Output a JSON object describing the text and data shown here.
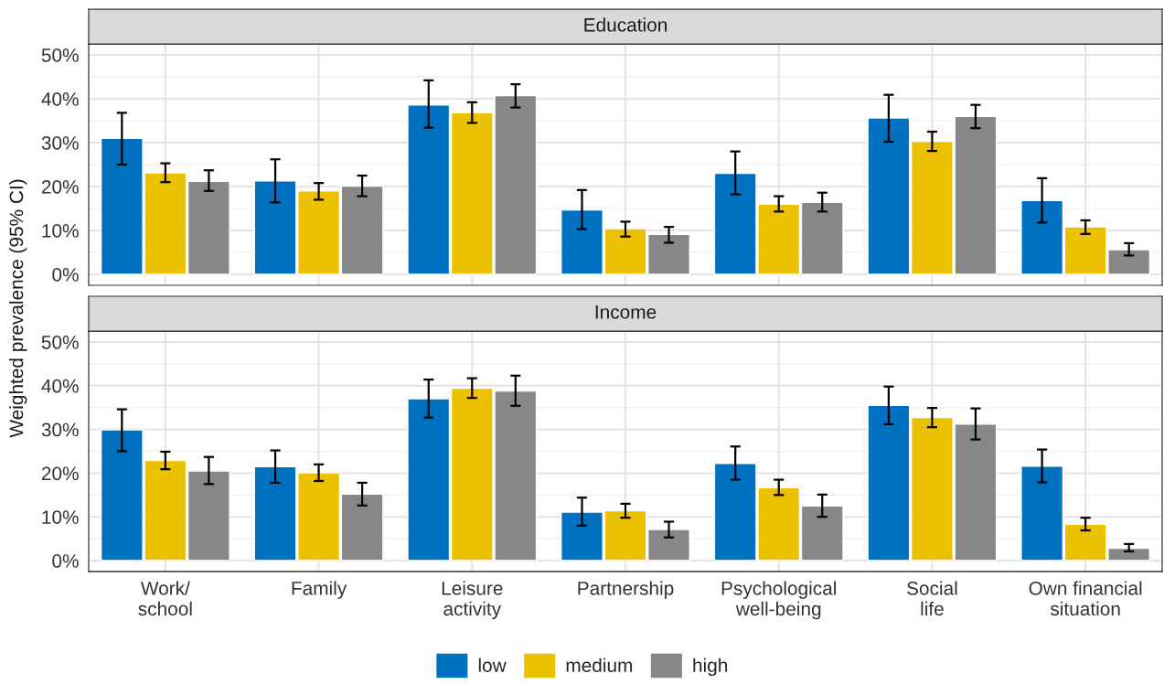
{
  "chart_data": [
    {
      "type": "bar",
      "title": "Education",
      "ylabel": "Weighted prevalence (95% CI)",
      "categories": [
        null,
        null,
        null,
        null,
        null,
        null,
        null
      ],
      "series": [
        {
          "name": "low",
          "color": "#0070c0",
          "values": [
            31.0,
            21.3,
            38.6,
            14.7,
            23.0,
            35.6,
            16.8
          ],
          "errors": [
            [
              25.0,
              36.8
            ],
            [
              16.4,
              26.2
            ],
            [
              33.4,
              44.2
            ],
            [
              10.3,
              19.2
            ],
            [
              18.2,
              28.0
            ],
            [
              30.2,
              40.9
            ],
            [
              11.8,
              21.9
            ]
          ]
        },
        {
          "name": "medium",
          "color": "#ecc100",
          "values": [
            23.1,
            19.0,
            36.8,
            10.4,
            16.0,
            30.3,
            10.8
          ],
          "errors": [
            [
              21.0,
              25.3
            ],
            [
              17.0,
              20.8
            ],
            [
              34.5,
              39.2
            ],
            [
              8.6,
              12.0
            ],
            [
              14.3,
              17.8
            ],
            [
              28.1,
              32.5
            ],
            [
              9.2,
              12.3
            ]
          ]
        },
        {
          "name": "high",
          "color": "#878787",
          "values": [
            21.2,
            20.1,
            40.7,
            9.1,
            16.4,
            36.0,
            5.6
          ],
          "errors": [
            [
              19.0,
              23.7
            ],
            [
              17.8,
              22.5
            ],
            [
              38.0,
              43.3
            ],
            [
              7.2,
              10.8
            ],
            [
              14.3,
              18.6
            ],
            [
              33.3,
              38.6
            ],
            [
              4.3,
              7.1
            ]
          ]
        }
      ],
      "ylim": [
        -2.5,
        52.5
      ],
      "yticks": [
        {
          "value": 0,
          "label": "0%"
        },
        {
          "value": 10,
          "label": "10%"
        },
        {
          "value": 20,
          "label": "20%"
        },
        {
          "value": 30,
          "label": "30%"
        },
        {
          "value": 40,
          "label": "40%"
        },
        {
          "value": 50,
          "label": "50%"
        }
      ],
      "grid": true,
      "legend": "bottom",
      "tick_labels": "y"
    },
    {
      "type": "bar",
      "title": "Income",
      "categories": [
        "Work/\nschool",
        "Family",
        "Leisure\nactivity",
        "Partnership",
        "Psychological\nwell-being",
        "Social\nlife",
        "Own financial\nsituation"
      ],
      "series": [
        {
          "color": "#0070c0",
          "values": [
            29.9,
            21.5,
            37.0,
            11.1,
            22.2,
            35.5,
            21.6
          ],
          "errors": [
            [
              25.0,
              34.6
            ],
            [
              17.8,
              25.2
            ],
            [
              32.7,
              41.4
            ],
            [
              8.0,
              14.4
            ],
            [
              18.5,
              26.1
            ],
            [
              31.2,
              39.8
            ],
            [
              17.9,
              25.4
            ]
          ]
        },
        {
          "color": "#ecc100",
          "values": [
            22.9,
            20.1,
            39.4,
            11.4,
            16.7,
            32.7,
            8.3
          ],
          "errors": [
            [
              20.9,
              24.9
            ],
            [
              18.2,
              22.0
            ],
            [
              37.2,
              41.7
            ],
            [
              9.8,
              13.0
            ],
            [
              15.0,
              18.5
            ],
            [
              30.5,
              34.9
            ],
            [
              6.9,
              9.8
            ]
          ]
        },
        {
          "color": "#878787",
          "values": [
            20.5,
            15.2,
            38.8,
            7.1,
            12.5,
            31.2,
            2.8
          ],
          "errors": [
            [
              17.5,
              23.7
            ],
            [
              12.6,
              17.8
            ],
            [
              35.4,
              42.3
            ],
            [
              5.3,
              8.9
            ],
            [
              10.0,
              15.1
            ],
            [
              27.7,
              34.8
            ],
            [
              2.1,
              3.8
            ]
          ]
        }
      ],
      "ylim": [
        -2.5,
        52.5
      ],
      "yticks": [
        {
          "value": 0,
          "label": "0%"
        },
        {
          "value": 10,
          "label": "10%"
        },
        {
          "value": 20,
          "label": "20%"
        },
        {
          "value": 30,
          "label": "30%"
        },
        {
          "value": 40,
          "label": "40%"
        },
        {
          "value": 50,
          "label": "50%"
        }
      ],
      "grid": true
    }
  ]
}
